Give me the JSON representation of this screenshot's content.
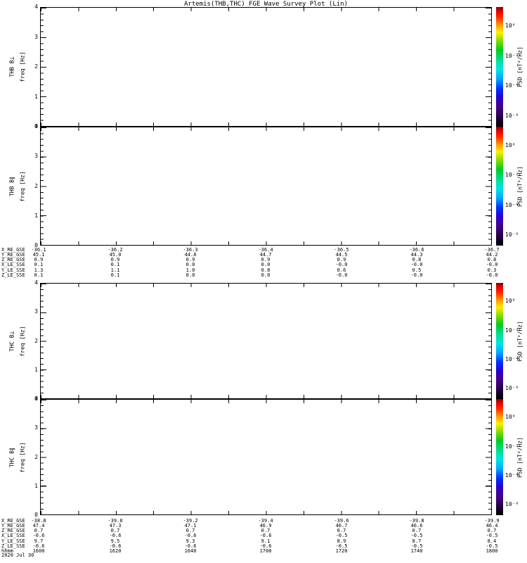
{
  "title": "Artemis(THB,THC) FGE Wave Survey Plot (Lin)",
  "axis": {
    "freq_label": "freq [Hz]",
    "yticks": [
      "4",
      "3",
      "2",
      "1",
      "0"
    ]
  },
  "colorbar": {
    "title": "PSD [nT²/Hz]",
    "ticks": [
      "10⁰",
      "10⁻²",
      "10⁻⁴",
      "10⁻⁶"
    ],
    "colormap_top_color": "#ff0000",
    "colormap_bottom_color": "#000000"
  },
  "panels": [
    {
      "label": "THB B⊥"
    },
    {
      "label": "THB B∥"
    },
    {
      "label": "THC B⊥"
    },
    {
      "label": "THC B∥"
    }
  ],
  "ephemeris_thb": {
    "rows": [
      {
        "label": "X_RE_GSE",
        "values": [
          "-36.1",
          "-36.2",
          "-36.3",
          "-36.4",
          "-36.5",
          "-36.6",
          "-36.7"
        ]
      },
      {
        "label": "Y_RE_GSE",
        "values": [
          "45.1",
          "45.0",
          "44.8",
          "44.7",
          "44.5",
          "44.3",
          "44.2"
        ]
      },
      {
        "label": "Z_RE_GSE",
        "values": [
          "0.9",
          "0.9",
          "0.9",
          "0.9",
          "0.9",
          "0.8",
          "0.8"
        ]
      },
      {
        "label": "X_LE_SSE",
        "values": [
          "0.1",
          "0.1",
          "0.0",
          "0.0",
          "-0.0",
          "-0.0",
          "-0.0"
        ]
      },
      {
        "label": "Y_LE_SSE",
        "values": [
          "1.3",
          "1.1",
          "1.0",
          "0.8",
          "0.6",
          "0.5",
          "0.3"
        ]
      },
      {
        "label": "Z_LE_SSE",
        "values": [
          "0.1",
          "0.1",
          "0.0",
          "0.0",
          "-0.0",
          "-0.0",
          "-0.0"
        ]
      }
    ]
  },
  "ephemeris_thc": {
    "rows": [
      {
        "label": "X_RE_GSE",
        "values": [
          "-38.8",
          "-39.0",
          "-39.2",
          "-39.4",
          "-39.6",
          "-39.8",
          "-39.9"
        ]
      },
      {
        "label": "Y_RE_GSE",
        "values": [
          "47.4",
          "47.3",
          "47.1",
          "46.9",
          "46.7",
          "46.6",
          "46.4"
        ]
      },
      {
        "label": "Z_RE_GSE",
        "values": [
          "0.7",
          "0.7",
          "0.7",
          "0.7",
          "0.7",
          "0.7",
          "0.7"
        ]
      },
      {
        "label": "X_LE_SSE",
        "values": [
          "-0.6",
          "-0.6",
          "-0.6",
          "-0.6",
          "-0.5",
          "-0.5",
          "-0.5"
        ]
      },
      {
        "label": "Y_LE_SSE",
        "values": [
          "9.7",
          "9.5",
          "9.3",
          "9.1",
          "8.9",
          "8.7",
          "8.4"
        ]
      },
      {
        "label": "Z_LE_SSE",
        "values": [
          "-0.6",
          "-0.6",
          "-0.6",
          "-0.6",
          "-0.5",
          "-0.5",
          "-0.5"
        ]
      }
    ]
  },
  "time_axis": {
    "label": "hhmm",
    "values": [
      "1600",
      "1620",
      "1640",
      "1700",
      "1720",
      "1740",
      "1800"
    ]
  },
  "date": "2020 Jul 30",
  "chart_data": {
    "type": "heatmap",
    "title": "Artemis(THB,THC) FGE Wave Survey Plot (Lin)",
    "x": {
      "label": "hhmm",
      "tick_labels": [
        "1600",
        "1620",
        "1640",
        "1700",
        "1720",
        "1740",
        "1800"
      ],
      "date": "2020 Jul 30"
    },
    "colorbar": {
      "label": "PSD [nT²/Hz]",
      "tick_labels": [
        "10⁰",
        "10⁻²",
        "10⁻⁴",
        "10⁻⁶"
      ],
      "colormap": "rainbow (red top → yellow → green → cyan → blue → violet → black bottom)"
    },
    "panels": [
      {
        "name": "THB B⊥",
        "ylabel": "freq [Hz]",
        "ylim": [
          0,
          4
        ],
        "ytick_labels": [
          0,
          1,
          2,
          3,
          4
        ],
        "values": []
      },
      {
        "name": "THB B∥",
        "ylabel": "freq [Hz]",
        "ylim": [
          0,
          4
        ],
        "ytick_labels": [
          0,
          1,
          2,
          3,
          4
        ],
        "values": []
      },
      {
        "name": "THC B⊥",
        "ylabel": "freq [Hz]",
        "ylim": [
          0,
          4
        ],
        "ytick_labels": [
          0,
          1,
          2,
          3,
          4
        ],
        "values": []
      },
      {
        "name": "THC B∥",
        "ylabel": "freq [Hz]",
        "ylim": [
          0,
          4
        ],
        "ytick_labels": [
          0,
          1,
          2,
          3,
          4
        ],
        "values": []
      }
    ],
    "grid": false,
    "panels_blank": true
  }
}
